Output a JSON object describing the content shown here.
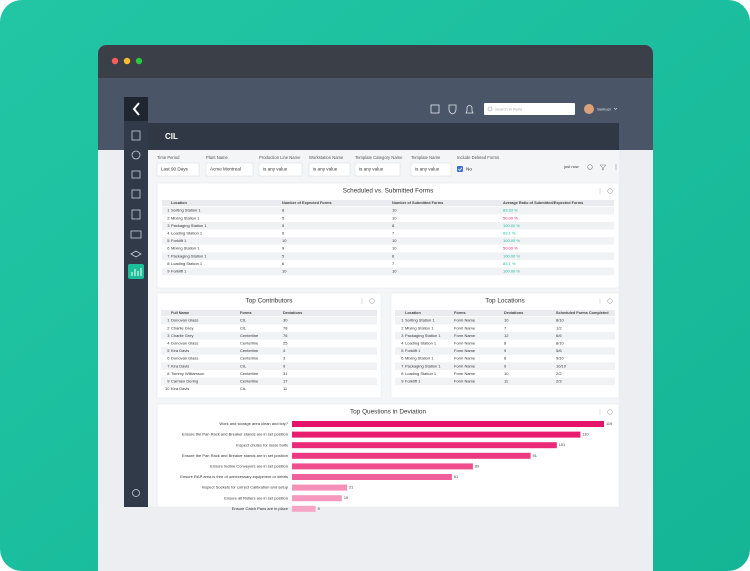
{
  "header": {
    "search_placeholder": "Search in Relia",
    "user_name": "Samuel",
    "page_title": "CIL"
  },
  "filters": {
    "items": [
      {
        "label": "Time Period",
        "value": "Last 90 Days"
      },
      {
        "label": "Plant Name",
        "value": "Acme Montreal"
      },
      {
        "label": "Production Line Name",
        "value": "is any value"
      },
      {
        "label": "Workstation Name",
        "value": "is any value"
      },
      {
        "label": "Template Category Name",
        "value": "is any value"
      },
      {
        "label": "Template Name",
        "value": "is any value"
      },
      {
        "label": "Include Deleted Forms",
        "value": "No"
      }
    ],
    "updated": "just now"
  },
  "tables": {
    "scheduled": {
      "title": "Scheduled vs. Submitted Forms",
      "columns": [
        "",
        "Location",
        "Number of Expected Forms",
        "Number of Submitted Forms",
        "Average Ratio of Submitted/Expected Forms"
      ],
      "rows": [
        [
          "1",
          "Sorting Station 1",
          "8",
          "10",
          "83.33 %"
        ],
        [
          "2",
          "Mixing Station 1",
          "5",
          "10",
          "50.00 %"
        ],
        [
          "3",
          "Packaging Station 1",
          "5",
          "8",
          "100.00 %"
        ],
        [
          "4",
          "Loading Station 1",
          "6",
          "7",
          "83.1 %"
        ],
        [
          "5",
          "Forklift 1",
          "10",
          "10",
          "100.00 %"
        ],
        [
          "6",
          "Mixing Station 1",
          "9",
          "10",
          "50.00 %"
        ],
        [
          "7",
          "Packaging Station 1",
          "5",
          "6",
          "100.00 %"
        ],
        [
          "8",
          "Loading Station 1",
          "6",
          "7",
          "83.1 %"
        ],
        [
          "9",
          "Forklift 1",
          "10",
          "10",
          "100.00 %"
        ]
      ],
      "ratio_colors": [
        "#1bbf9a",
        "#e8206e",
        "#1bbf9a",
        "#1bbf9a",
        "#1bbf9a",
        "#e8206e",
        "#1bbf9a",
        "#1bbf9a",
        "#1bbf9a"
      ]
    },
    "contributors": {
      "title": "Top Contributors",
      "columns": [
        "",
        "Full Name",
        "Forms",
        "Deviations"
      ],
      "rows": [
        [
          "1",
          "Donovan Glass",
          "CIL",
          "30"
        ],
        [
          "2",
          "Charlie Grey",
          "CIL",
          "78"
        ],
        [
          "3",
          "Charlie Grey",
          "Centerline",
          "76"
        ],
        [
          "4",
          "Donovan Glass",
          "Centerline",
          "25"
        ],
        [
          "5",
          "Kira Davis",
          "Centerline",
          "4"
        ],
        [
          "6",
          "Donovan Glass",
          "Centerline",
          "3"
        ],
        [
          "7",
          "Kira Davis",
          "CIL",
          "9"
        ],
        [
          "8",
          "Tommy Williamson",
          "Centerline",
          "31"
        ],
        [
          "9",
          "Carmen Dering",
          "Centerline",
          "17"
        ],
        [
          "10",
          "Kira Davis",
          "CIL",
          "11"
        ]
      ]
    },
    "locations": {
      "title": "Top Locations",
      "columns": [
        "",
        "Location",
        "Forms",
        "Deviations",
        "Scheduled Forms Completed"
      ],
      "rows": [
        [
          "1",
          "Sorting Station 1",
          "Form Name",
          "10",
          "8/10"
        ],
        [
          "2",
          "Mixing Station 1",
          "Form Name",
          "7",
          "1/2"
        ],
        [
          "3",
          "Packaging Station 1",
          "Form Name",
          "12",
          "6/6"
        ],
        [
          "4",
          "Loading Station 1",
          "Form Name",
          "8",
          "8/10"
        ],
        [
          "5",
          "Forklift 1",
          "Form Name",
          "9",
          "5/6"
        ],
        [
          "6",
          "Mixing Station 1",
          "Form Name",
          "8",
          "9/10"
        ],
        [
          "7",
          "Packaging Station 1",
          "Form Name",
          "9",
          "10/10"
        ],
        [
          "8",
          "Loading Station 1",
          "Form Name",
          "10",
          "2/2"
        ],
        [
          "9",
          "Forklift 1",
          "Form Name",
          "11",
          "2/3"
        ]
      ]
    }
  },
  "chart_data": {
    "type": "bar",
    "title": "Top Questions in Deviation",
    "categories": [
      "Work and storage area clean and tidy?",
      "Ensure the Pan Rack and Breaker stands are in set position",
      "Inspect chutes for loose bolts",
      "Ensure the Pan Rack and Breaker stands are in set position",
      "Ensure incline Conveyors are in set position",
      "Ensure RAP area is free of unnecessary equipment or debris",
      "Inspect Sockets for correct Calibration and setup",
      "Ensure all Rollers are in set position",
      "Ensure Catch Pans are in place"
    ],
    "values": [
      119,
      110,
      101,
      91,
      69,
      61,
      21,
      19,
      9
    ],
    "colors": [
      "#e5136a",
      "#e81d70",
      "#ea2a78",
      "#ec3a82",
      "#ef4f8f",
      "#f0609a",
      "#f590b8",
      "#f699be",
      "#f7a4c5"
    ]
  }
}
